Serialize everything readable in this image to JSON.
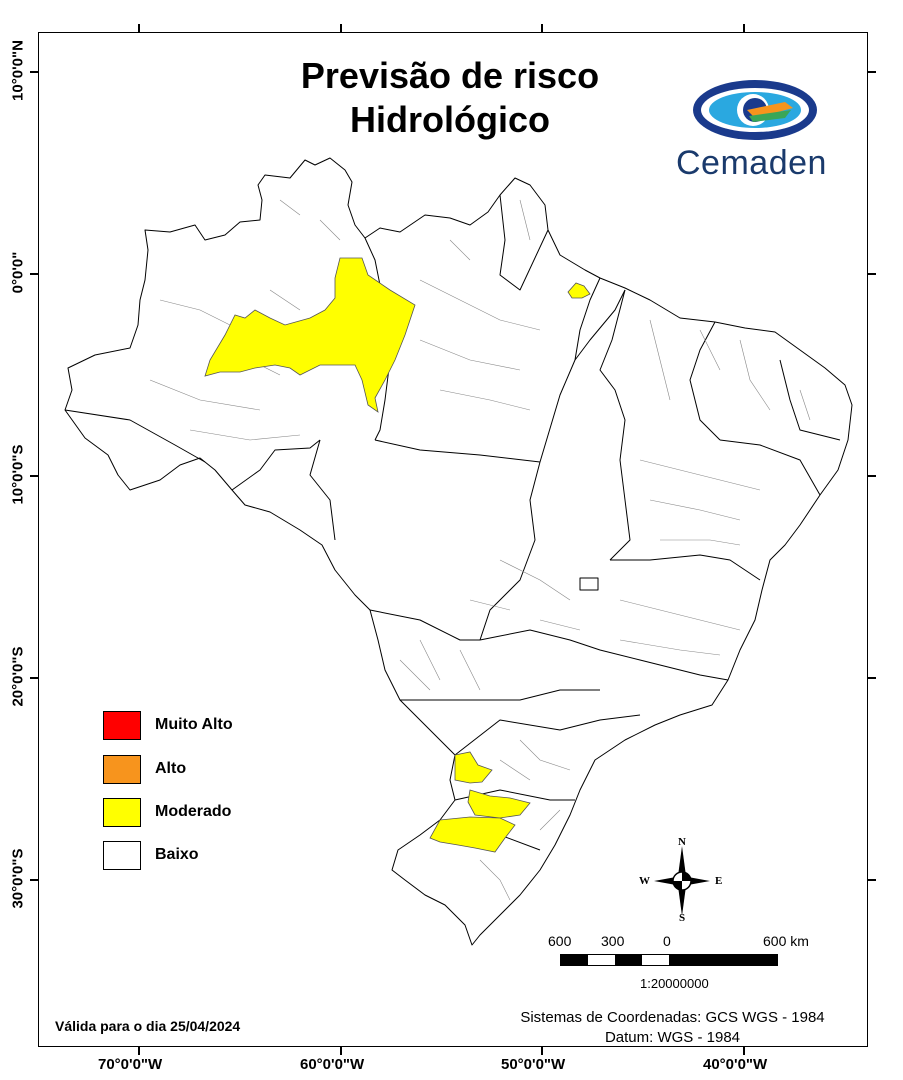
{
  "title_line1": "Previsão de risco",
  "title_line2": "Hidrológico",
  "logo": {
    "name": "Cemaden",
    "icon": "cemaden-eye-logo"
  },
  "lat_labels": [
    "10°0'0\"N",
    "0°0'0\"",
    "10°0'0\"S",
    "20°0'0\"S",
    "30°0'0\"S"
  ],
  "lon_labels": [
    "70°0'0\"W",
    "60°0'0\"W",
    "50°0'0\"W",
    "40°0'0\"W"
  ],
  "legend": [
    {
      "label": "Muito Alto",
      "color": "#ff0000"
    },
    {
      "label": "Alto",
      "color": "#f7941d"
    },
    {
      "label": "Moderado",
      "color": "#ffff00"
    },
    {
      "label": "Baixo",
      "color": "#ffffff"
    }
  ],
  "compass": {
    "n": "N",
    "s": "S",
    "e": "E",
    "w": "W"
  },
  "scale": {
    "labels": [
      "600",
      "300",
      "0",
      "600 km"
    ],
    "ratio": "1:20000000"
  },
  "valid_text": "Válida para o dia 25/04/2024",
  "coords_line1": "Sistemas de Coordenadas: GCS WGS - 1984",
  "coords_line2": "Datum: WGS - 1984",
  "risk_level_shown": "Moderado"
}
